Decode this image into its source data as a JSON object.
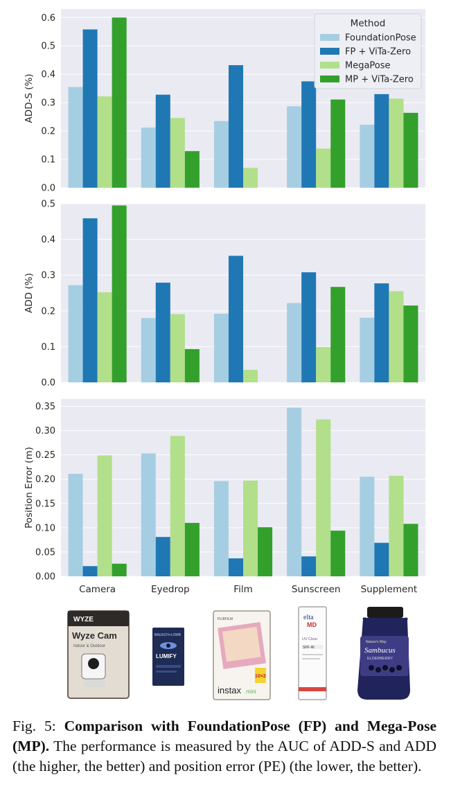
{
  "colors": {
    "panel_bg": "#eaeaf2",
    "grid": "#ffffff",
    "series": [
      "#a6cee3",
      "#1f78b4",
      "#b2df8a",
      "#33a02c"
    ]
  },
  "chart_data": [
    {
      "type": "bar",
      "title": "",
      "xlabel": "",
      "ylabel": "ADD-S (%)",
      "ylim": [
        0,
        0.63
      ],
      "yticks": [
        "0.0",
        "0.1",
        "0.2",
        "0.3",
        "0.4",
        "0.5",
        "0.6"
      ],
      "categories": [
        "Camera",
        "Eyedrop",
        "Film",
        "Sunscreen",
        "Supplement"
      ],
      "show_xticklabels": false,
      "legend": {
        "title": "Method",
        "placement": "top-right",
        "entries": [
          "FoundationPose",
          "FP + ViTa-Zero",
          "MegaPose",
          "MP + ViTa-Zero"
        ]
      },
      "series": [
        {
          "name": "FoundationPose",
          "values": [
            0.355,
            0.212,
            0.235,
            0.287,
            0.222
          ]
        },
        {
          "name": "FP + ViTa-Zero",
          "values": [
            0.558,
            0.328,
            0.432,
            0.375,
            0.33
          ]
        },
        {
          "name": "MegaPose",
          "values": [
            0.322,
            0.246,
            0.07,
            0.138,
            0.314
          ]
        },
        {
          "name": "MP + ViTa-Zero",
          "values": [
            0.6,
            0.129,
            0.0,
            0.311,
            0.264
          ]
        }
      ]
    },
    {
      "type": "bar",
      "title": "",
      "xlabel": "",
      "ylabel": "ADD (%)",
      "ylim": [
        0,
        0.5
      ],
      "yticks": [
        "0.0",
        "0.1",
        "0.2",
        "0.3",
        "0.4",
        "0.5"
      ],
      "categories": [
        "Camera",
        "Eyedrop",
        "Film",
        "Sunscreen",
        "Supplement"
      ],
      "show_xticklabels": false,
      "series": [
        {
          "name": "FoundationPose",
          "values": [
            0.272,
            0.18,
            0.192,
            0.222,
            0.181
          ]
        },
        {
          "name": "FP + ViTa-Zero",
          "values": [
            0.459,
            0.279,
            0.354,
            0.308,
            0.277
          ]
        },
        {
          "name": "MegaPose",
          "values": [
            0.252,
            0.191,
            0.035,
            0.099,
            0.255
          ]
        },
        {
          "name": "MP + ViTa-Zero",
          "values": [
            0.495,
            0.093,
            0.0,
            0.267,
            0.215
          ]
        }
      ]
    },
    {
      "type": "bar",
      "title": "",
      "xlabel": "",
      "ylabel": "Position Error (m)",
      "ylim": [
        0,
        0.365
      ],
      "yticks": [
        "0.00",
        "0.05",
        "0.10",
        "0.15",
        "0.20",
        "0.25",
        "0.30",
        "0.35"
      ],
      "categories": [
        "Camera",
        "Eyedrop",
        "Film",
        "Sunscreen",
        "Supplement"
      ],
      "show_xticklabels": true,
      "series": [
        {
          "name": "FoundationPose",
          "values": [
            0.211,
            0.253,
            0.196,
            0.347,
            0.205
          ]
        },
        {
          "name": "FP + ViTa-Zero",
          "values": [
            0.021,
            0.081,
            0.037,
            0.041,
            0.069
          ]
        },
        {
          "name": "MegaPose",
          "values": [
            0.249,
            0.289,
            0.197,
            0.323,
            0.207
          ]
        },
        {
          "name": "MP + ViTa-Zero",
          "values": [
            0.026,
            0.11,
            0.101,
            0.094,
            0.108
          ]
        }
      ]
    }
  ],
  "products": {
    "camera": {
      "brand": "WYZE",
      "name": "Wyze Cam",
      "sub": "Indoor & Outdoor"
    },
    "eyedrop": {
      "brand": "BAUSCH+LOMB",
      "name": "LUMIFY"
    },
    "film": {
      "brand": "FUJIFILM",
      "name": "instax",
      "name2": "mini",
      "count": "10×2"
    },
    "sunscreen": {
      "brand": "elta",
      "brand2": "MD",
      "name": "UV Clear",
      "spf": "SPF 46"
    },
    "supplement": {
      "brand": "Nature's Way",
      "name": "Sambucus",
      "name2": "ELDERBERRY"
    }
  },
  "caption": {
    "prefix": "Fig. 5: ",
    "bold": "Comparison with FoundationPose (FP) and Mega-Pose (MP).",
    "rest": " The performance is measured by the AUC of ADD-S and ADD (the higher, the better) and position error (PE) (the lower, the better)."
  }
}
